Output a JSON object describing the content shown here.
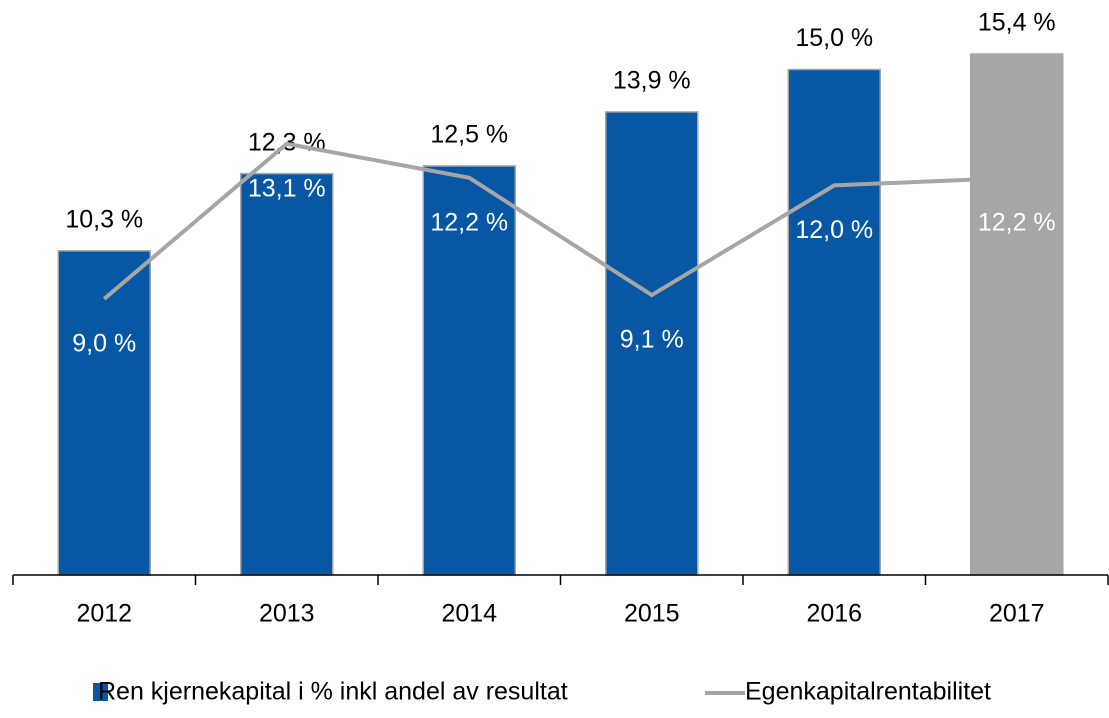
{
  "chart_data": {
    "type": "bar-line",
    "categories": [
      "2012",
      "2013",
      "2014",
      "2015",
      "2016",
      "2017"
    ],
    "ylim": [
      1.9,
      16.8
    ],
    "y2lim": [
      1.7,
      16.9
    ],
    "legend": "bottom",
    "series": [
      {
        "name": "Ren kjernekapital i % inkl andel av resultat",
        "type": "bar",
        "color": "#0757a5",
        "colors": [
          "#0757a5",
          "#0757a5",
          "#0757a5",
          "#0757a5",
          "#0757a5",
          "#a6a6a6"
        ],
        "values": [
          10.3,
          12.3,
          12.5,
          13.9,
          15.0,
          15.4
        ],
        "value_labels": [
          "10,3 %",
          "12,3 %",
          "12,5 %",
          "13,9 %",
          "15,0 %",
          "15,4 %"
        ]
      },
      {
        "name": "Egenkapitalrentabilitet",
        "type": "line",
        "axis": "y2",
        "color": "#a6a6a6",
        "values": [
          9.0,
          13.1,
          12.2,
          9.1,
          12.0,
          12.2
        ],
        "value_labels": [
          "9,0 %",
          "13,1 %",
          "12,2 %",
          "9,1 %",
          "12,0 %",
          "12,2 %"
        ]
      }
    ]
  }
}
